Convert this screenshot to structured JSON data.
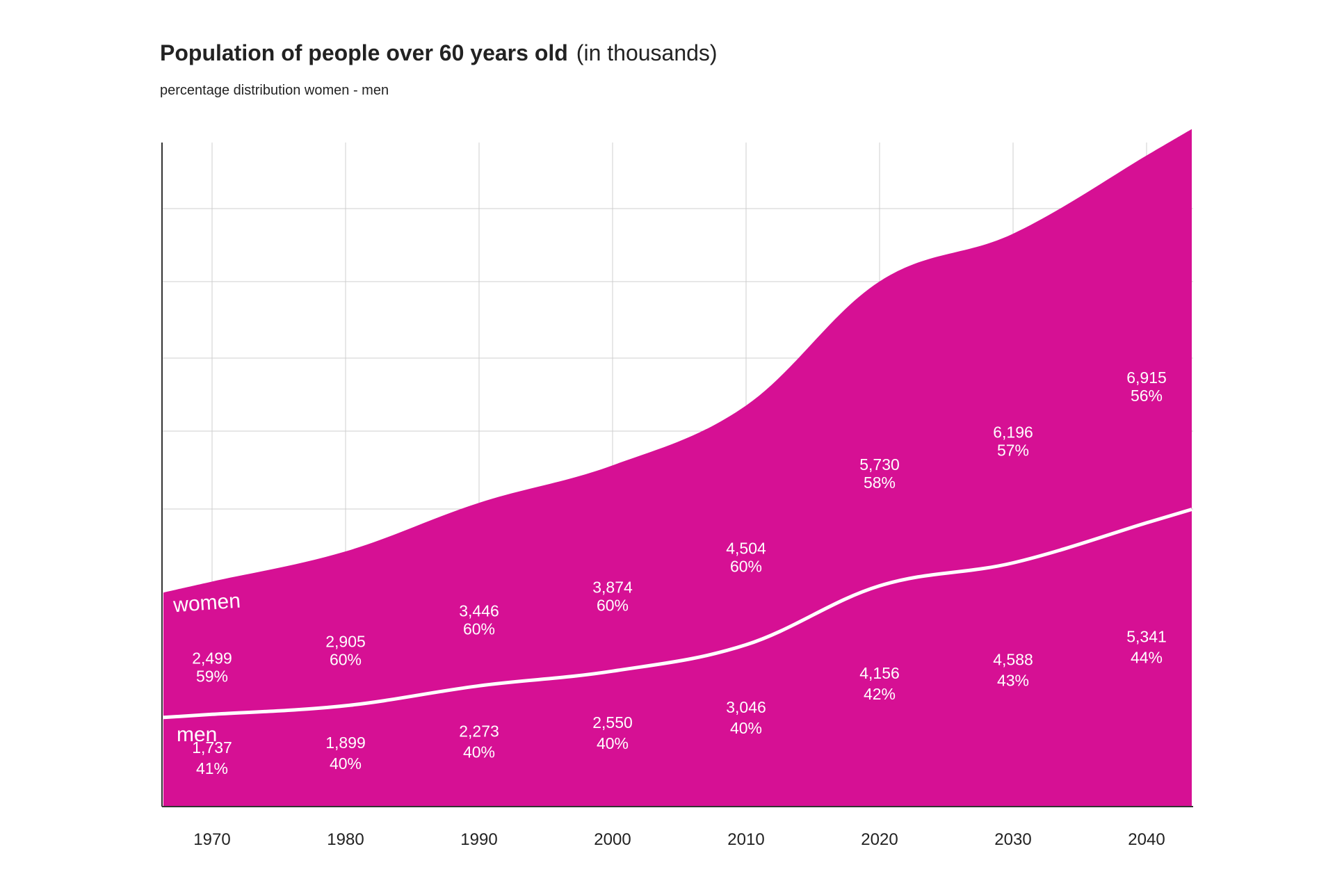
{
  "header": {
    "title_bold": "Population of people over 60 years old",
    "title_rest": "(in thousands)",
    "subtitle": "percentage distribution  women - men"
  },
  "colors": {
    "area": "#d61094",
    "divider": "#ffffff",
    "grid": "#cfcfcf",
    "axis": "#333333"
  },
  "chart_data": {
    "type": "area",
    "stacked": true,
    "x": [
      "1970",
      "1980",
      "1990",
      "2000",
      "2010",
      "2020",
      "2030",
      "2040"
    ],
    "series": [
      {
        "name": "men",
        "values": [
          1737,
          1899,
          2273,
          2550,
          3046,
          4156,
          4588,
          5341
        ],
        "value_labels": [
          "1,737",
          "1,899",
          "2,273",
          "2,550",
          "3,046",
          "4,156",
          "4,588",
          "5,341"
        ],
        "percent_labels": [
          "41%",
          "40%",
          "40%",
          "40%",
          "40%",
          "42%",
          "43%",
          "44%"
        ]
      },
      {
        "name": "women",
        "values": [
          2499,
          2905,
          3446,
          3874,
          4504,
          5730,
          6196,
          6915
        ],
        "value_labels": [
          "2,499",
          "2,905",
          "3,446",
          "3,874",
          "4,504",
          "5,730",
          "6,196",
          "6,915"
        ],
        "percent_labels": [
          "59%",
          "60%",
          "60%",
          "60%",
          "60%",
          "58%",
          "57%",
          "56%"
        ]
      }
    ],
    "ylim": [
      0,
      12500
    ],
    "grid": true,
    "legend": "inline"
  }
}
